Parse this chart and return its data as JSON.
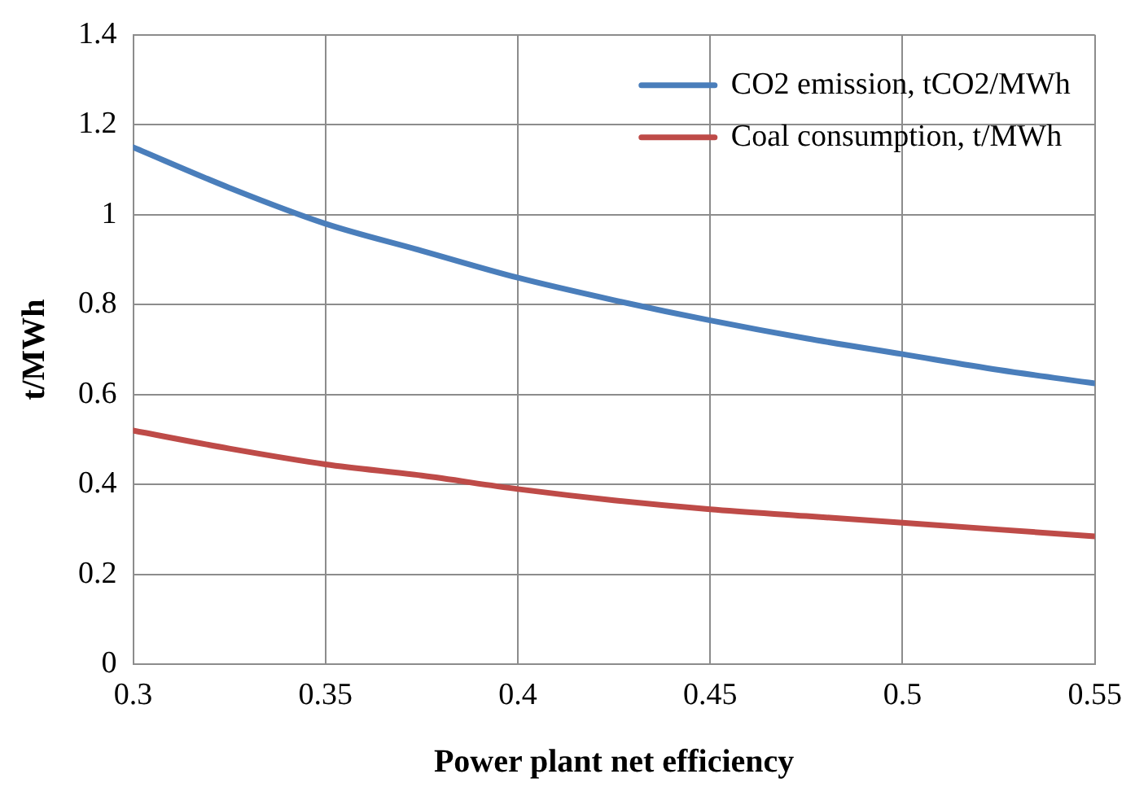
{
  "chart_data": {
    "type": "line",
    "xlabel": "Power plant net efficiency",
    "ylabel": "t/MWh",
    "x": [
      0.3,
      0.325,
      0.35,
      0.375,
      0.4,
      0.425,
      0.45,
      0.475,
      0.5,
      0.525,
      0.55
    ],
    "series": [
      {
        "name": "CO2 emission, tCO2/MWh",
        "color": "#4a7ebb",
        "values": [
          1.15,
          1.06,
          0.98,
          0.92,
          0.86,
          0.81,
          0.765,
          0.725,
          0.69,
          0.655,
          0.625
        ]
      },
      {
        "name": "Coal consumption, t/MWh",
        "color": "#be4b48",
        "values": [
          0.52,
          0.48,
          0.445,
          0.42,
          0.39,
          0.365,
          0.345,
          0.33,
          0.315,
          0.3,
          0.285
        ]
      }
    ],
    "xlim": [
      0.3,
      0.55
    ],
    "xticks": [
      0.3,
      0.35,
      0.4,
      0.45,
      0.5,
      0.55
    ],
    "ylim": [
      0,
      1.4
    ],
    "yticks": [
      0,
      0.2,
      0.4,
      0.6,
      0.8,
      1,
      1.2,
      1.4
    ],
    "grid": true,
    "legend": "top right",
    "marker": "none",
    "line_style": "solid"
  }
}
